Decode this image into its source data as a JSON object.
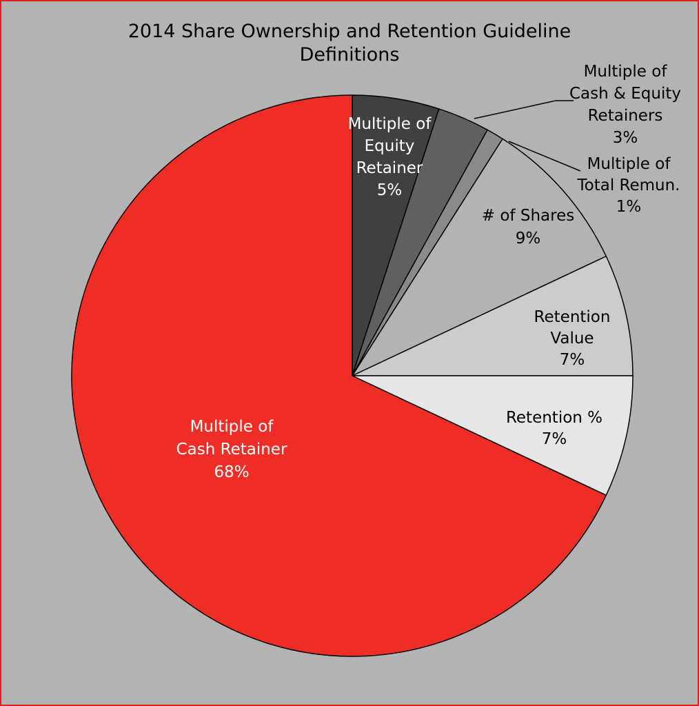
{
  "chart_data": {
    "type": "pie",
    "title": "2014 Share Ownership and Retention Guideline\nDefinitions",
    "categories": [
      "Multiple of\nEquity\nRetainer",
      "Multiple of\nCash & Equity\nRetainers",
      "Multiple of\nTotal Remun.",
      "# of Shares",
      "Retention\nValue",
      "Retention %",
      "Multiple of\nCash Retainer"
    ],
    "values": [
      5,
      3,
      1,
      9,
      7,
      7,
      68
    ],
    "value_labels": [
      "5%",
      "3%",
      "1%",
      "9%",
      "7%",
      "7%",
      "68%"
    ],
    "colors": [
      "#404040",
      "#606060",
      "#8a8a8a",
      "#b3b3b3",
      "#cccccc",
      "#e6e6e6",
      "#ee2e26"
    ]
  }
}
